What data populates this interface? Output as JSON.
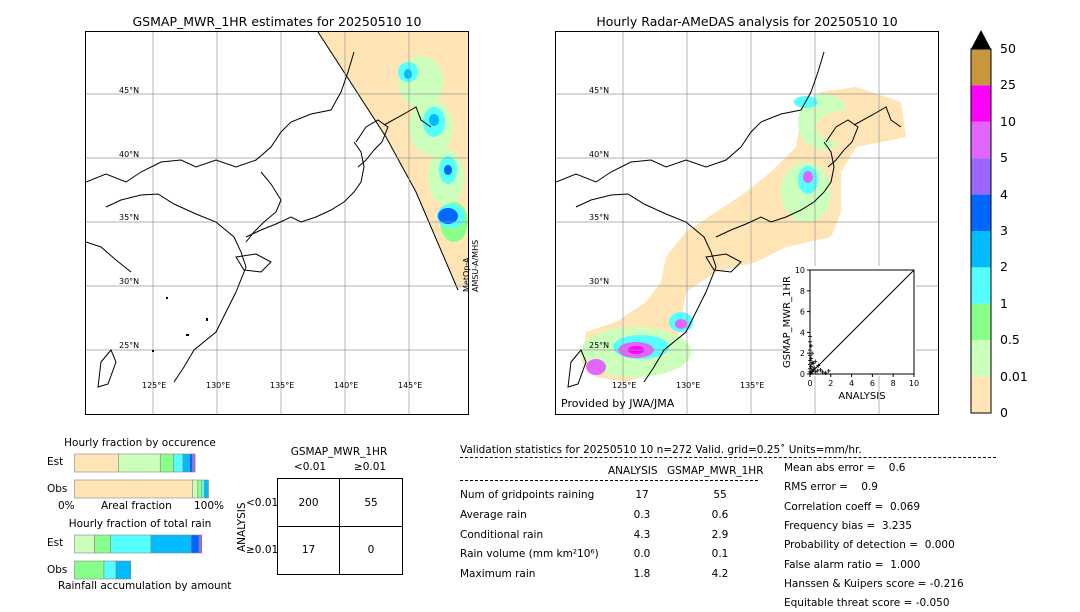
{
  "left_map": {
    "title": "GSMAP_MWR_1HR estimates for 20250510 10",
    "lat_labels": [
      "45°N",
      "40°N",
      "35°N",
      "30°N",
      "25°N"
    ],
    "lon_labels": [
      "125°E",
      "130°E",
      "135°E",
      "140°E",
      "145°E"
    ],
    "swath_label_1": "MetOp-A",
    "swath_label_2": "AMSU-A/MHS"
  },
  "right_map": {
    "title": "Hourly Radar-AMeDAS analysis for 20250510 10",
    "lat_labels": [
      "45°N",
      "40°N",
      "35°N",
      "30°N",
      "25°N"
    ],
    "lon_labels": [
      "125°E",
      "130°E",
      "135°E"
    ],
    "credit": "Provided by JWA/JMA"
  },
  "colorbar": {
    "labels": [
      "50",
      "25",
      "10",
      "5",
      "4",
      "3",
      "2",
      "1",
      "0.5",
      "0.01",
      "0"
    ],
    "colors": [
      "#c8963c",
      "#ff00ff",
      "#e066ff",
      "#9966ff",
      "#0066ff",
      "#00bbff",
      "#55ffff",
      "#88ff88",
      "#ccffbb",
      "#ffe4b5"
    ]
  },
  "chart_data": [
    {
      "type": "scatter",
      "title": "",
      "xlabel": "ANALYSIS",
      "ylabel": "GSMAP_MWR_1HR",
      "xlim": [
        0,
        10
      ],
      "ylim": [
        0,
        10
      ],
      "x_ticks": [
        "0",
        "2",
        "4",
        "6",
        "8",
        "10"
      ],
      "y_ticks": [
        "0",
        "2",
        "4",
        "6",
        "8",
        "10"
      ],
      "points": [
        [
          0,
          0.2
        ],
        [
          0,
          0.5
        ],
        [
          0,
          0.9
        ],
        [
          0,
          1.3
        ],
        [
          0,
          1.8
        ],
        [
          0,
          2.3
        ],
        [
          0,
          3.1
        ],
        [
          0,
          3.6
        ],
        [
          0.1,
          0.1
        ],
        [
          0.1,
          0.7
        ],
        [
          0.1,
          1.5
        ],
        [
          0.1,
          2.7
        ],
        [
          0.2,
          0.3
        ],
        [
          0.2,
          1.1
        ],
        [
          0.2,
          2.0
        ],
        [
          0.3,
          0.4
        ],
        [
          0.3,
          1.0
        ],
        [
          0.4,
          0.6
        ],
        [
          0.5,
          0.2
        ],
        [
          0.5,
          1.2
        ],
        [
          0.7,
          0.3
        ],
        [
          0.8,
          0.8
        ],
        [
          1.0,
          0.4
        ],
        [
          1.2,
          0.2
        ],
        [
          1.5,
          0.1
        ],
        [
          1.8,
          0.3
        ]
      ],
      "diagonal": true
    },
    {
      "type": "bar",
      "title": "Hourly fraction by occurence",
      "categories": [
        "Est",
        "Obs"
      ],
      "xlabel": "Areal fraction",
      "xlim_labels": [
        "0%",
        "100%"
      ],
      "series": [
        {
          "values": [
            0.33,
            0.88
          ]
        },
        {
          "values": [
            0.31,
            0.04
          ]
        },
        {
          "values": [
            0.1,
            0.03
          ]
        },
        {
          "values": [
            0.07,
            0.02
          ]
        },
        {
          "values": [
            0.05,
            0.03
          ]
        },
        {
          "values": [
            0.02,
            0.0
          ]
        },
        {
          "values": [
            0.02,
            0.0
          ]
        }
      ],
      "colors": [
        "#ffe4b5",
        "#ccffbb",
        "#88ff88",
        "#55ffff",
        "#00bbff",
        "#0066ff",
        "#9966ff"
      ]
    },
    {
      "type": "bar",
      "title": "Hourly fraction of total rain",
      "categories": [
        "Est",
        "Obs"
      ],
      "xlabel": "Rainfall accumulation by amount",
      "series": [
        {
          "values": [
            0.15,
            0.0
          ]
        },
        {
          "values": [
            0.12,
            0.22
          ]
        },
        {
          "values": [
            0.3,
            0.09
          ]
        },
        {
          "values": [
            0.3,
            0.11
          ]
        },
        {
          "values": [
            0.06,
            0.0
          ]
        },
        {
          "values": [
            0.02,
            0.0
          ]
        }
      ],
      "colors": [
        "#ccffbb",
        "#88ff88",
        "#55ffff",
        "#00bbff",
        "#0066ff",
        "#9966ff"
      ]
    },
    {
      "type": "table",
      "title": "GSMAP_MWR_1HR",
      "col_headers": [
        "<0.01",
        "≥0.01"
      ],
      "row_axis_label": "ANALYSIS",
      "row_headers": [
        "<0.01",
        "≥0.01"
      ],
      "cells": [
        [
          "200",
          "55"
        ],
        [
          "17",
          "0"
        ]
      ]
    }
  ],
  "validation": {
    "header": "Validation statistics for 20250510 10  n=272 Valid. grid=0.25˚ Units=mm/hr.",
    "col_analysis": "ANALYSIS",
    "col_gsmap": "GSMAP_MWR_1HR",
    "rows": [
      {
        "label": "Num of gridpoints raining",
        "analysis": "17",
        "gsmap": "55"
      },
      {
        "label": "Average rain",
        "analysis": "0.3",
        "gsmap": "0.6"
      },
      {
        "label": "Conditional rain",
        "analysis": "4.3",
        "gsmap": "2.9"
      },
      {
        "label": "Rain volume (mm km²10⁶)",
        "analysis": "0.0",
        "gsmap": "0.1"
      },
      {
        "label": "Maximum rain",
        "analysis": "1.8",
        "gsmap": "4.2"
      }
    ],
    "scores": [
      "Mean abs error =    0.6",
      "RMS error =    0.9",
      "Correlation coeff =  0.069",
      "Frequency bias =  3.235",
      "Probability of detection =  0.000",
      "False alarm ratio =  1.000",
      "Hanssen & Kuipers score = -0.216",
      "Equitable threat score = -0.050"
    ]
  }
}
